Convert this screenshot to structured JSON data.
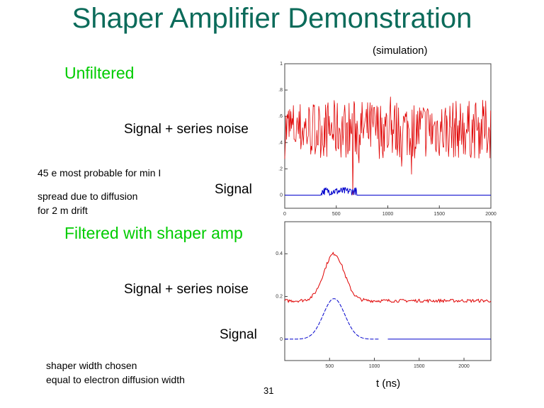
{
  "title": "Shaper Amplifier Demonstration",
  "subtitle": "(simulation)",
  "unfiltered_label": "Unfiltered",
  "filtered_label": "Filtered with shaper amp",
  "top_noise_label": "Signal + series noise",
  "top_signal_label": "Signal",
  "bottom_noise_label": "Signal + series noise",
  "bottom_signal_label": "Signal",
  "note1": "45 e most probable for min I",
  "note2_line1": "spread due to diffusion",
  "note2_line2": "for 2 m drift",
  "note3_line1": "shaper width chosen",
  "note3_line2": "equal to electron diffusion width",
  "xlabel_bottom": "t (ns)",
  "page_number": "31",
  "colors": {
    "title": "#0b6b5a",
    "green": "#00cc00",
    "noise": "#e00000",
    "signal": "#0000cc"
  },
  "chart_data": [
    {
      "type": "line",
      "title": "",
      "xlabel": "",
      "ylabel": "",
      "xlim": [
        0,
        2000
      ],
      "ylim": [
        -0.1,
        1
      ],
      "x_ticks": [
        0,
        500,
        1000,
        1500,
        2000
      ],
      "x_tick_labels": [
        "0",
        "500",
        "1000",
        "1500",
        "2000"
      ],
      "y_ticks": [
        0,
        0.2,
        0.4,
        0.6,
        0.8,
        1
      ],
      "y_tick_labels": [
        "0",
        ".2",
        ".4",
        ".6",
        ".8",
        "1"
      ],
      "series": [
        {
          "color": "#e00000",
          "description": "signal + series noise, random around 0.5 (range ~0.25 to 0.85), dip to ~0 at x~660"
        },
        {
          "color": "#0000cc",
          "description": "signal, flat 0 with small pulses (~0.05) between x~350 and x~700"
        }
      ]
    },
    {
      "type": "line",
      "title": "",
      "xlabel": "t (ns)",
      "ylabel": "",
      "xlim": [
        0,
        2300
      ],
      "ylim": [
        -0.1,
        0.55
      ],
      "x_ticks": [
        500,
        1000,
        1500,
        2000
      ],
      "x_tick_labels": [
        "500",
        "1000",
        "1500",
        "2000"
      ],
      "y_ticks": [
        0,
        0.2,
        0.4
      ],
      "y_tick_labels": [
        "0",
        "0.2",
        "0.4"
      ],
      "series": [
        {
          "color": "#e00000",
          "description": "filtered signal + noise: baseline ~0.18, peak ~0.4 at t~550"
        },
        {
          "color": "#0000cc",
          "description": "filtered signal (dashed): baseline 0, peak ~0.19 at t~550, gap around t~1050-1150"
        }
      ]
    }
  ]
}
